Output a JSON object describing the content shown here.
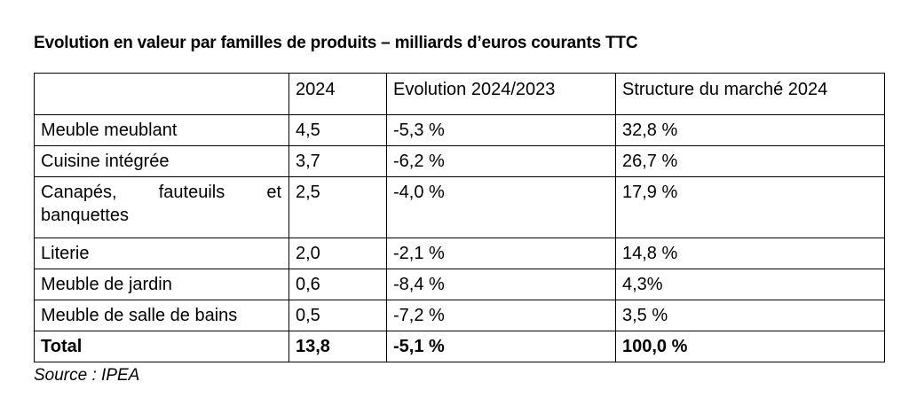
{
  "title": "Evolution en valeur par familles de produits – milliards d’euros courants TTC",
  "table": {
    "headers": [
      "",
      "2024",
      "Evolution 2024/2023",
      "Structure du marché 2024"
    ],
    "rows": [
      [
        "Meuble meublant",
        "4,5",
        "-5,3 %",
        "32,8 %"
      ],
      [
        "Cuisine intégrée",
        "3,7",
        "-6,2 %",
        "26,7 %"
      ],
      [
        "Canapés, fauteuils et banquettes",
        "2,5",
        "-4,0 %",
        "17,9 %"
      ],
      [
        "Literie",
        "2,0",
        "-2,1 %",
        "14,8 %"
      ],
      [
        "Meuble de jardin",
        "0,6",
        "-8,4 %",
        "4,3%"
      ],
      [
        "Meuble de salle de bains",
        "0,5",
        "-7,2 %",
        "3,5 %"
      ]
    ],
    "total": [
      "Total",
      "13,8",
      "-5,1 %",
      "100,0 %"
    ]
  },
  "source": "Source : IPEA"
}
